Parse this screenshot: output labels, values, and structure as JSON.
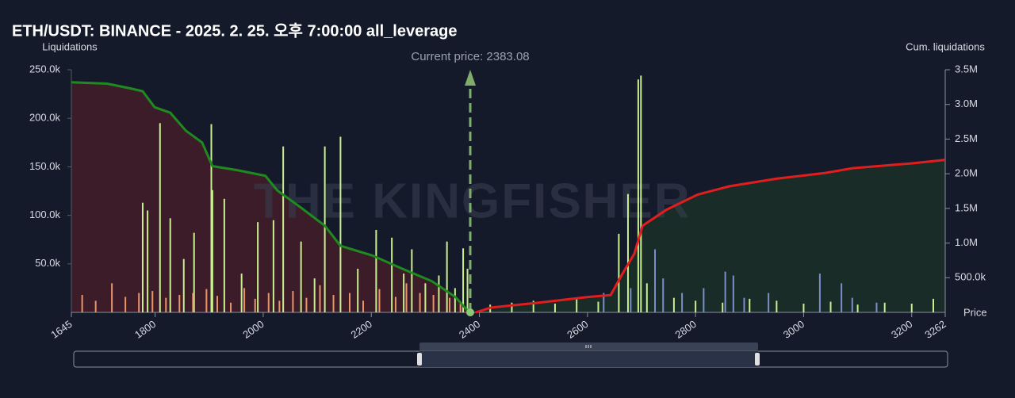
{
  "chart_data": {
    "type": "liquidation",
    "title": "ETH/USDT: BINANCE - 2025. 2. 25. 오후 7:00:00 all_leverage",
    "y_label": "Liquidations",
    "y2_label": "Cum. liquidations",
    "x_label": "Price",
    "watermark": "THE KINGFISHER",
    "current_price_label": "Current price: 2383.08",
    "current_price": 2383.08,
    "xlim": [
      1645,
      3262
    ],
    "xticks": [
      1645,
      1800,
      2000,
      2200,
      2400,
      2600,
      2800,
      3000,
      3200,
      3262
    ],
    "ylim": [
      0,
      250000
    ],
    "yticks": [
      {
        "value": 50000,
        "label": "50.0k"
      },
      {
        "value": 100000,
        "label": "100.0k"
      },
      {
        "value": 150000,
        "label": "150.0k"
      },
      {
        "value": 200000,
        "label": "200.0k"
      },
      {
        "value": 250000,
        "label": "250.0k"
      }
    ],
    "y2lim": [
      0,
      3500000
    ],
    "y2ticks": [
      {
        "value": 500000,
        "label": "500.0k"
      },
      {
        "value": 1000000,
        "label": "1.0M"
      },
      {
        "value": 1500000,
        "label": "1.5M"
      },
      {
        "value": 2000000,
        "label": "2.0M"
      },
      {
        "value": 2500000,
        "label": "2.5M"
      },
      {
        "value": 3000000,
        "label": "3.0M"
      },
      {
        "value": 3500000,
        "label": "3.5M"
      }
    ],
    "series": [
      {
        "kind": "bar",
        "color": "#c9ef8e",
        "x": [
          1777,
          1786,
          1809,
          1828,
          1853,
          1872,
          1904,
          1906,
          1928,
          1960,
          1990,
          2019,
          2037,
          2070,
          2095,
          2114,
          2143,
          2175,
          2209,
          2238,
          2260,
          2275,
          2300,
          2325,
          2340,
          2355,
          2370,
          2378,
          2420,
          2460,
          2500,
          2540,
          2580,
          2620,
          2658,
          2675,
          2694,
          2699,
          2710,
          2760,
          2800,
          2850,
          2900,
          2950,
          3000,
          3050,
          3100,
          3150,
          3200,
          3240
        ],
        "values": [
          113000,
          105000,
          195000,
          97000,
          55000,
          82000,
          194000,
          126000,
          117000,
          40000,
          93000,
          95000,
          171000,
          73000,
          35000,
          171000,
          181000,
          45000,
          85000,
          77000,
          40000,
          65000,
          30000,
          38000,
          73000,
          25000,
          66000,
          45000,
          8000,
          10000,
          12000,
          9000,
          15000,
          11000,
          81000,
          122000,
          240000,
          244000,
          30000,
          15000,
          12000,
          10000,
          14000,
          12000,
          9000,
          11000,
          8000,
          10000,
          9000,
          14000
        ]
      },
      {
        "kind": "bar",
        "color": "#e8956a",
        "x": [
          1665,
          1690,
          1720,
          1745,
          1770,
          1795,
          1820,
          1845,
          1870,
          1895,
          1915,
          1940,
          1965,
          1985,
          2010,
          2030,
          2055,
          2080,
          2105,
          2130,
          2160,
          2185,
          2215,
          2245,
          2265,
          2290,
          2315,
          2345,
          2365
        ],
        "values": [
          18000,
          12000,
          30000,
          16000,
          20000,
          22000,
          15000,
          18000,
          20000,
          24000,
          17000,
          10000,
          25000,
          14000,
          20000,
          12000,
          22000,
          15000,
          28000,
          18000,
          20000,
          12000,
          24000,
          16000,
          30000,
          20000,
          18000,
          15000,
          10000
        ]
      },
      {
        "kind": "bar",
        "color": "#7a8fcc",
        "x": [
          2630,
          2680,
          2725,
          2740,
          2775,
          2815,
          2855,
          2870,
          2890,
          2935,
          3030,
          3070,
          3090,
          3135
        ],
        "values": [
          20000,
          25000,
          65000,
          35000,
          20000,
          25000,
          42000,
          38000,
          15000,
          20000,
          40000,
          30000,
          15000,
          10000
        ]
      },
      {
        "kind": "line",
        "axis": "y2",
        "color": "#1f8a1f",
        "fill": "#4a1e2a",
        "x": [
          1645,
          1711,
          1755,
          1777,
          1799,
          1828,
          1857,
          1887,
          1906,
          1953,
          2004,
          2026,
          2070,
          2114,
          2143,
          2202,
          2260,
          2312,
          2356,
          2381
        ],
        "values": [
          3320000,
          3300000,
          3230000,
          3190000,
          2960000,
          2880000,
          2620000,
          2450000,
          2110000,
          2050000,
          1970000,
          1760000,
          1510000,
          1250000,
          960000,
          820000,
          620000,
          450000,
          220000,
          0
        ]
      },
      {
        "kind": "line",
        "axis": "y2",
        "color": "#e01e1e",
        "fill": "#1b3328",
        "x": [
          2393,
          2422,
          2510,
          2599,
          2643,
          2665,
          2687,
          2702,
          2746,
          2804,
          2863,
          2951,
          3039,
          3091,
          3201,
          3262
        ],
        "values": [
          0,
          70000,
          140000,
          220000,
          250000,
          560000,
          850000,
          1250000,
          1480000,
          1700000,
          1820000,
          1930000,
          2010000,
          2080000,
          2150000,
          2200000
        ]
      }
    ]
  }
}
